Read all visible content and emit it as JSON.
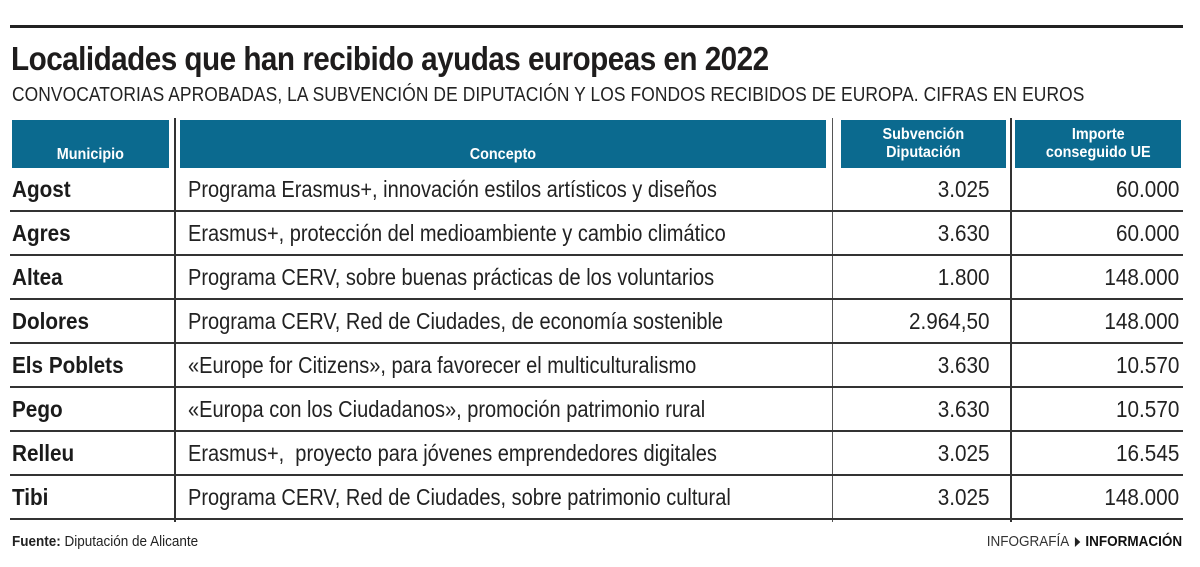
{
  "header": {
    "title": "Localidades que han recibido ayudas europeas en 2022",
    "subtitle": "CONVOCATORIAS APROBADAS, LA SUBVENCIÓN DE DIPUTACIÓN Y LOS FONDOS RECIBIDOS DE EUROPA. CIFRAS EN EUROS"
  },
  "table": {
    "columns": {
      "municipio": "Municipio",
      "concepto": "Concepto",
      "subvencion_line1": "Subvención",
      "subvencion_line2": "Diputación",
      "importe_line1": "Importe",
      "importe_line2": "conseguido UE"
    },
    "rows": [
      {
        "municipio": "Agost",
        "concepto": "Programa Erasmus+, innovación estilos artísticos y diseños",
        "subvencion": "3.025",
        "importe": "60.000"
      },
      {
        "municipio": "Agres",
        "concepto": "Erasmus+, protección del medioambiente y cambio climático",
        "subvencion": "3.630",
        "importe": "60.000"
      },
      {
        "municipio": "Altea",
        "concepto": "Programa CERV, sobre buenas prácticas de los voluntarios",
        "subvencion": "1.800",
        "importe": "148.000"
      },
      {
        "municipio": "Dolores",
        "concepto": "Programa CERV, Red de Ciudades, de economía sostenible",
        "subvencion": "2.964,50",
        "importe": "148.000"
      },
      {
        "municipio": "Els Poblets",
        "concepto": "«Europe for Citizens», para favorecer el multiculturalismo",
        "subvencion": "3.630",
        "importe": "10.570"
      },
      {
        "municipio": "Pego",
        "concepto": "«Europa con los Ciudadanos», promoción patrimonio rural",
        "subvencion": "3.630",
        "importe": "10.570"
      },
      {
        "municipio": "Relleu",
        "concepto": "Erasmus+,  proyecto para jóvenes emprendedores digitales",
        "subvencion": "3.025",
        "importe": "16.545"
      },
      {
        "municipio": "Tibi",
        "concepto": "Programa CERV, Red de Ciudades, sobre patrimonio cultural",
        "subvencion": "3.025",
        "importe": "148.000"
      }
    ]
  },
  "footer": {
    "source_label": "Fuente:",
    "source_value": " Diputación de Alicante",
    "credit_prefix": "INFOGRAFÍA",
    "credit_arrow_icon": "triangle-right-icon",
    "credit_brand": "INFORMACIÓN"
  },
  "colors": {
    "header_bg": "#0b6a8f",
    "header_text": "#ffffff",
    "rule": "#222222",
    "text": "#1b1b1b"
  }
}
